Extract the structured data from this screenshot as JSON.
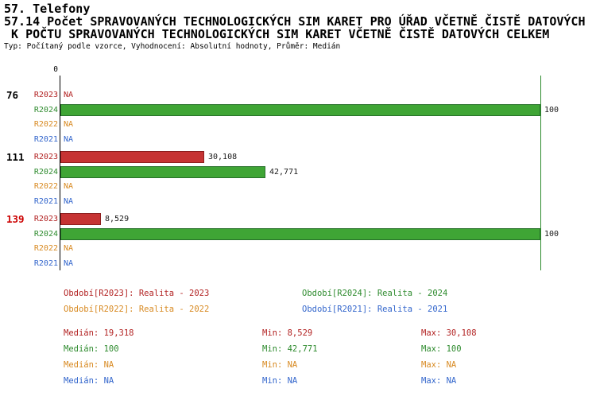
{
  "header": {
    "section": "57. Telefony",
    "title_line1": "57.14 Počet SPRAVOVANÝCH TECHNOLOGICKÝCH SIM KARET PRO ÚŘAD VČETNĚ ČISTĚ DATOVÝCH",
    "title_line2": " K POČTU SPRAVOVANÝCH TECHNOLOGICKÝCH SIM KARET VČETNĚ ČISTĚ DATOVÝCH CELKEM",
    "meta": "Typ: Počítaný podle vzorce, Vyhodnocení: Absolutní hodnoty, Průměr: Medián"
  },
  "chart_data": {
    "type": "bar",
    "orientation": "horizontal",
    "title": "57.14 Počet SPRAVOVANÝCH TECHNOLOGICKÝCH SIM KARET PRO ÚŘAD VČETNĚ ČISTĚ DATOVÝCH K POČTU SPRAVOVANÝCH TECHNOLOGICKÝCH SIM KARET VČETNĚ ČISTĚ DATOVÝCH CELKEM",
    "subtitle": "Typ: Počítaný podle vzorce, Vyhodnocení: Absolutní hodnoty, Průměr: Medián",
    "xlim": [
      0,
      100
    ],
    "axis_zero_label": "0",
    "grid": "zero-axis-and-max-line",
    "series_meta": {
      "R2023": {
        "name": "Realita - 2023",
        "text_color": "#b22222",
        "bar_fill": "#c63333",
        "bar_border": "#8e1f1f"
      },
      "R2024": {
        "name": "Realita - 2024",
        "text_color": "#2e8b2e",
        "bar_fill": "#3fa535",
        "bar_border": "#27702a"
      },
      "R2022": {
        "name": "Realita - 2022",
        "text_color": "#d88a22",
        "bar_fill": "#e09a40",
        "bar_border": "#a86a18"
      },
      "R2021": {
        "name": "Realita - 2021",
        "text_color": "#3366cc",
        "bar_fill": "#4477dd",
        "bar_border": "#224488"
      }
    },
    "groups": [
      {
        "label": "76",
        "label_color": "#000000",
        "rows": [
          {
            "series": "R2023",
            "value": null,
            "display": "NA"
          },
          {
            "series": "R2024",
            "value": 100,
            "display": "100"
          },
          {
            "series": "R2022",
            "value": null,
            "display": "NA"
          },
          {
            "series": "R2021",
            "value": null,
            "display": "NA"
          }
        ]
      },
      {
        "label": "111",
        "label_color": "#000000",
        "rows": [
          {
            "series": "R2023",
            "value": 30.108,
            "display": "30,108"
          },
          {
            "series": "R2024",
            "value": 42.771,
            "display": "42,771"
          },
          {
            "series": "R2022",
            "value": null,
            "display": "NA"
          },
          {
            "series": "R2021",
            "value": null,
            "display": "NA"
          }
        ]
      },
      {
        "label": "139",
        "label_color": "#cc0000",
        "rows": [
          {
            "series": "R2023",
            "value": 8.529,
            "display": "8,529"
          },
          {
            "series": "R2024",
            "value": 100,
            "display": "100"
          },
          {
            "series": "R2022",
            "value": null,
            "display": "NA"
          },
          {
            "series": "R2021",
            "value": null,
            "display": "NA"
          }
        ]
      }
    ],
    "legend": [
      {
        "series": "R2023",
        "text": "Období[R2023]: Realita - 2023",
        "column": 0,
        "row": 0
      },
      {
        "series": "R2024",
        "text": "Období[R2024]: Realita - 2024",
        "column": 1,
        "row": 0
      },
      {
        "series": "R2022",
        "text": "Období[R2022]: Realita - 2022",
        "column": 0,
        "row": 1
      },
      {
        "series": "R2021",
        "text": "Období[R2021]: Realita - 2021",
        "column": 1,
        "row": 1
      }
    ],
    "stats": [
      {
        "series": "R2023",
        "median": "Medián: 19,318",
        "min": "Min: 8,529",
        "max": "Max: 30,108"
      },
      {
        "series": "R2024",
        "median": "Medián: 100",
        "min": "Min: 42,771",
        "max": "Max: 100"
      },
      {
        "series": "R2022",
        "median": "Medián: NA",
        "min": "Min: NA",
        "max": "Max: NA"
      },
      {
        "series": "R2021",
        "median": "Medián: NA",
        "min": "Min: NA",
        "max": "Max: NA"
      }
    ]
  }
}
